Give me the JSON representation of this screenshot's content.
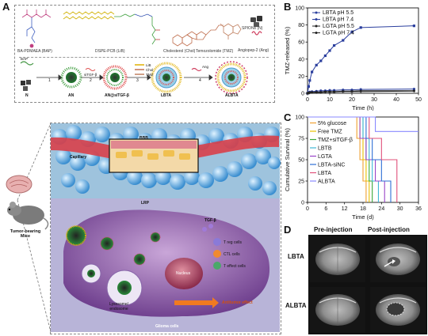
{
  "panels": {
    "a": "A",
    "b": "B",
    "c": "C",
    "d": "D"
  },
  "scheme": {
    "materials": [
      {
        "label": "BA-PDMAEA (BAP)"
      },
      {
        "label": "DSPE-PCB (LiB)"
      },
      {
        "label": "Cholesterol (Chol)"
      },
      {
        "label": "Temozolomide (TMZ)"
      },
      {
        "label": "SPIONs (N)"
      },
      {
        "label": "Angiopep-2 (Ang)"
      }
    ],
    "steps": [
      "1",
      "2",
      "3",
      "4"
    ],
    "step_labels": {
      "bap": "BAP",
      "sitgf": "siTGF-β",
      "lib": "LiB",
      "chol": "Chol",
      "tmz": "TMZ",
      "ang": "Ang"
    },
    "products": [
      "N",
      "AN",
      "AN@siTGF-β",
      "LBTA",
      "ALBTA"
    ]
  },
  "illustration": {
    "capillary": "Capillary",
    "bbb": "BBB",
    "lrp": "LRP",
    "tgf": "TGF-β",
    "nucleus": "Nucleus",
    "lysosome": "Lysosome/ endosome",
    "glioma": "Glioma cells",
    "treg": "T reg cells",
    "ctl": "CTL cells",
    "teffect": "T effect cells",
    "antitumor": "Antitumor effect",
    "mouse": "Tumor-bearing Mice"
  },
  "colors": {
    "lbta_ph55": "#2b3f9e",
    "lbta_ph74": "#2b3f9e",
    "lgta_ph55": "#222222",
    "lgta_ph74": "#222222",
    "glucose": "#f0a030",
    "free_tmz": "#e8c000",
    "tmz_sitgf": "#3aa83a",
    "lbtb": "#3fb7d6",
    "lgta": "#9a45c8",
    "lbta_sinc": "#2e6fd6",
    "lbta": "#e0507a",
    "albta": "#8a8aff"
  },
  "chart_data": [
    {
      "type": "line",
      "title": "",
      "xlabel": "Time (h)",
      "ylabel": "TMZ-released (%)",
      "xlim": [
        0,
        50
      ],
      "ylim": [
        0,
        100
      ],
      "xticks": [
        0,
        10,
        20,
        30,
        40,
        50
      ],
      "yticks": [
        0,
        20,
        40,
        60,
        80,
        100
      ],
      "legend": "top-left",
      "series": [
        {
          "name": "LBTA pH 5.5",
          "x": [
            0,
            0.5,
            1,
            2,
            4,
            6,
            8,
            10,
            12,
            16,
            20,
            24,
            48
          ],
          "y": [
            0,
            8,
            15,
            25,
            33,
            38,
            44,
            50,
            56,
            62,
            72,
            77,
            79
          ]
        },
        {
          "name": "LBTA pH 7.4",
          "x": [
            0,
            0.5,
            1,
            2,
            4,
            6,
            8,
            10,
            12,
            16,
            20,
            24,
            48
          ],
          "y": [
            0,
            1,
            1.5,
            2,
            2.5,
            3,
            3,
            3.5,
            3.5,
            4,
            4,
            4.5,
            5
          ]
        },
        {
          "name": "LGTA pH 5.5",
          "x": [
            0,
            0.5,
            1,
            2,
            4,
            6,
            8,
            10,
            12,
            16,
            20,
            24,
            48
          ],
          "y": [
            0,
            0.5,
            1,
            1,
            1.5,
            1.5,
            2,
            2,
            2,
            2.5,
            2.5,
            3,
            3
          ]
        },
        {
          "name": "LGTA pH 7.4",
          "x": [
            0,
            0.5,
            1,
            2,
            4,
            6,
            8,
            10,
            12,
            16,
            20,
            24,
            48
          ],
          "y": [
            0,
            0.5,
            0.5,
            1,
            1,
            1,
            1.5,
            1.5,
            1.5,
            2,
            2,
            2,
            2.5
          ]
        }
      ]
    },
    {
      "type": "line",
      "title": "",
      "xlabel": "Time (d)",
      "ylabel": "Cumulative Survival (%)",
      "xlim": [
        0,
        36
      ],
      "ylim": [
        0,
        100
      ],
      "xticks": [
        0,
        6,
        12,
        18,
        24,
        30,
        36
      ],
      "yticks": [
        0,
        25,
        50,
        75,
        100
      ],
      "legend": "left",
      "series": [
        {
          "name": "5% glucose",
          "steps": [
            [
              0,
              100
            ],
            [
              16,
              100
            ],
            [
              16,
              75
            ],
            [
              17,
              75
            ],
            [
              17,
              50
            ],
            [
              18,
              50
            ],
            [
              18,
              25
            ],
            [
              19,
              25
            ],
            [
              19,
              0
            ]
          ]
        },
        {
          "name": "Free TMZ",
          "steps": [
            [
              0,
              100
            ],
            [
              17,
              100
            ],
            [
              17,
              75
            ],
            [
              18,
              75
            ],
            [
              18,
              50
            ],
            [
              19,
              50
            ],
            [
              19,
              25
            ],
            [
              20,
              25
            ],
            [
              20,
              0
            ]
          ]
        },
        {
          "name": "TMZ+siTGF-β",
          "steps": [
            [
              0,
              100
            ],
            [
              18,
              100
            ],
            [
              18,
              75
            ],
            [
              19,
              75
            ],
            [
              19,
              50
            ],
            [
              20,
              50
            ],
            [
              20,
              25
            ],
            [
              21,
              25
            ],
            [
              21,
              0
            ]
          ]
        },
        {
          "name": "LBTB",
          "steps": [
            [
              0,
              100
            ],
            [
              18,
              100
            ],
            [
              18,
              75
            ],
            [
              20,
              75
            ],
            [
              20,
              50
            ],
            [
              21,
              50
            ],
            [
              21,
              25
            ],
            [
              23,
              25
            ],
            [
              23,
              0
            ]
          ]
        },
        {
          "name": "LGTA",
          "steps": [
            [
              0,
              100
            ],
            [
              17,
              100
            ],
            [
              17,
              75
            ],
            [
              19,
              75
            ],
            [
              19,
              50
            ],
            [
              22,
              50
            ],
            [
              22,
              25
            ],
            [
              25,
              25
            ],
            [
              25,
              0
            ]
          ]
        },
        {
          "name": "LBTA-siNC",
          "steps": [
            [
              0,
              100
            ],
            [
              19,
              100
            ],
            [
              19,
              75
            ],
            [
              21,
              75
            ],
            [
              21,
              50
            ],
            [
              24,
              50
            ],
            [
              24,
              25
            ],
            [
              27,
              25
            ],
            [
              27,
              0
            ]
          ]
        },
        {
          "name": "LBTA",
          "steps": [
            [
              0,
              100
            ],
            [
              20,
              100
            ],
            [
              20,
              75
            ],
            [
              24,
              75
            ],
            [
              24,
              50
            ],
            [
              29,
              50
            ],
            [
              29,
              0
            ]
          ]
        },
        {
          "name": "ALBTA",
          "steps": [
            [
              0,
              100
            ],
            [
              22,
              100
            ],
            [
              22,
              83
            ],
            [
              36,
              83
            ]
          ]
        }
      ]
    }
  ],
  "mri": {
    "col_titles": [
      "Pre-injection",
      "Post-injection"
    ],
    "row_labels": [
      "LBTA",
      "ALBTA"
    ]
  }
}
